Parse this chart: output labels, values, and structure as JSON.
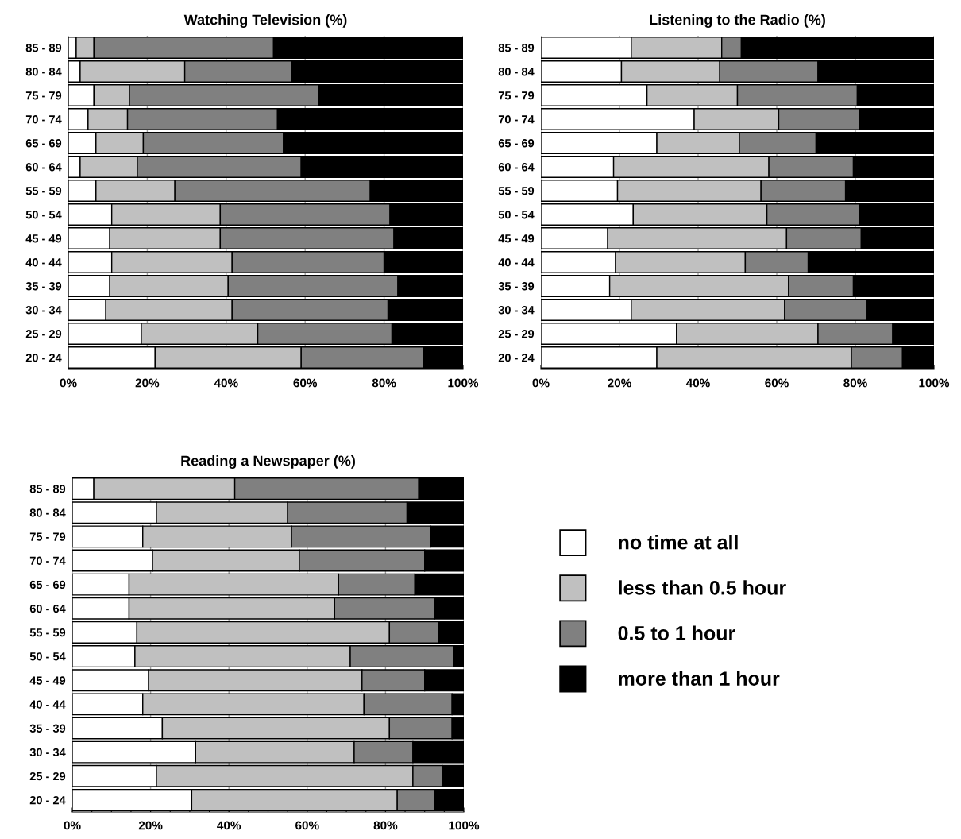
{
  "chart_data": [
    {
      "type": "bar",
      "title": "Watching Television (%)",
      "orientation": "horizontal",
      "stacked": true,
      "categories": [
        "85 - 89",
        "80 - 84",
        "75 - 79",
        "70 - 74",
        "65 - 69",
        "60 - 64",
        "55 - 59",
        "50 - 54",
        "45 - 49",
        "40 - 44",
        "35 - 39",
        "30 - 34",
        "25 - 29",
        "20 - 24"
      ],
      "series": [
        {
          "color": "#ffffff",
          "values": [
            2,
            3,
            6.5,
            5,
            7,
            3,
            7,
            11,
            10.5,
            11,
            10.5,
            9.5,
            18.5,
            22
          ]
        },
        {
          "color": "#c0c0c0",
          "values": [
            4.5,
            26.5,
            9,
            10,
            12,
            14.5,
            20,
            27.5,
            28,
            30.5,
            30,
            32,
            29.5,
            37
          ]
        },
        {
          "color": "#808080",
          "values": [
            45.5,
            27,
            48,
            38,
            35.5,
            41.5,
            49.5,
            43,
            44,
            38.5,
            43,
            39.5,
            34,
            31
          ]
        },
        {
          "color": "#000000",
          "values": [
            48,
            43.5,
            36.5,
            47,
            45.5,
            41,
            23.5,
            18.5,
            17.5,
            20,
            16.5,
            19,
            18,
            10
          ]
        }
      ],
      "xlim": [
        0,
        100
      ],
      "xticks": [
        {
          "value": 0,
          "label": "0%"
        },
        {
          "value": 5,
          "label": null
        },
        {
          "value": 10,
          "label": null
        },
        {
          "value": 15,
          "label": null
        },
        {
          "value": 20,
          "label": "20%"
        },
        {
          "value": 25,
          "label": null
        },
        {
          "value": 30,
          "label": null
        },
        {
          "value": 35,
          "label": null
        },
        {
          "value": 40,
          "label": "40%"
        },
        {
          "value": 45,
          "label": null
        },
        {
          "value": 50,
          "label": null
        },
        {
          "value": 55,
          "label": null
        },
        {
          "value": 60,
          "label": "60%"
        },
        {
          "value": 65,
          "label": null
        },
        {
          "value": 70,
          "label": null
        },
        {
          "value": 75,
          "label": null
        },
        {
          "value": 80,
          "label": "80%"
        },
        {
          "value": 85,
          "label": null
        },
        {
          "value": 90,
          "label": null
        },
        {
          "value": 95,
          "label": null
        },
        {
          "value": 100,
          "label": "100%"
        }
      ],
      "grid": "x"
    },
    {
      "type": "bar",
      "title": "Listening to the Radio (%)",
      "orientation": "horizontal",
      "stacked": true,
      "categories": [
        "85 - 89",
        "80 - 84",
        "75 - 79",
        "70 - 74",
        "65 - 69",
        "60 - 64",
        "55 - 59",
        "50 - 54",
        "45 - 49",
        "40 - 44",
        "35 - 39",
        "30 - 34",
        "25 - 29",
        "20 - 24"
      ],
      "series": [
        {
          "color": "#ffffff",
          "values": [
            23,
            20.5,
            27,
            39,
            29.5,
            18.5,
            19.5,
            23.5,
            17,
            19,
            17.5,
            23,
            34.5,
            29.5
          ]
        },
        {
          "color": "#c0c0c0",
          "values": [
            23,
            25,
            23,
            21.5,
            21,
            39.5,
            36.5,
            34,
            45.5,
            33,
            45.5,
            39,
            36,
            49.5
          ]
        },
        {
          "color": "#808080",
          "values": [
            5,
            25,
            30.5,
            20.5,
            19.5,
            21.5,
            21.5,
            23.5,
            19,
            16,
            16.5,
            21,
            19,
            13
          ]
        },
        {
          "color": "#000000",
          "values": [
            49,
            29.5,
            19.5,
            19,
            30,
            20.5,
            22.5,
            19,
            18.5,
            32,
            20.5,
            17,
            10.5,
            8
          ]
        }
      ],
      "xlim": [
        0,
        100
      ],
      "xticks": [
        {
          "value": 0,
          "label": "0%"
        },
        {
          "value": 5,
          "label": null
        },
        {
          "value": 10,
          "label": null
        },
        {
          "value": 15,
          "label": null
        },
        {
          "value": 20,
          "label": "20%"
        },
        {
          "value": 25,
          "label": null
        },
        {
          "value": 30,
          "label": null
        },
        {
          "value": 35,
          "label": null
        },
        {
          "value": 40,
          "label": "40%"
        },
        {
          "value": 45,
          "label": null
        },
        {
          "value": 50,
          "label": null
        },
        {
          "value": 55,
          "label": null
        },
        {
          "value": 60,
          "label": "60%"
        },
        {
          "value": 65,
          "label": null
        },
        {
          "value": 70,
          "label": null
        },
        {
          "value": 75,
          "label": null
        },
        {
          "value": 80,
          "label": "80%"
        },
        {
          "value": 85,
          "label": null
        },
        {
          "value": 90,
          "label": null
        },
        {
          "value": 95,
          "label": null
        },
        {
          "value": 100,
          "label": "100%"
        }
      ],
      "grid": "x"
    },
    {
      "type": "bar",
      "title": "Reading a Newspaper (%)",
      "orientation": "horizontal",
      "stacked": true,
      "categories": [
        "85 - 89",
        "80 - 84",
        "75 - 79",
        "70 - 74",
        "65 - 69",
        "60 - 64",
        "55 - 59",
        "50 - 54",
        "45 - 49",
        "40 - 44",
        "35 - 39",
        "30 - 34",
        "25 - 29",
        "20 - 24"
      ],
      "series": [
        {
          "name": "no time at all",
          "color": "#ffffff",
          "values": [
            5.5,
            21.5,
            18,
            20.5,
            14.5,
            14.5,
            16.5,
            16,
            19.5,
            18,
            23,
            31.5,
            21.5,
            30.5
          ]
        },
        {
          "name": "less than 0.5 hour",
          "color": "#c0c0c0",
          "values": [
            36,
            33.5,
            38,
            37.5,
            53.5,
            52.5,
            64.5,
            55,
            54.5,
            56.5,
            58,
            40.5,
            65.5,
            52.5
          ]
        },
        {
          "name": "0.5 to 1 hour",
          "color": "#808080",
          "values": [
            47,
            30.5,
            35.5,
            32,
            19.5,
            25.5,
            12.5,
            26.5,
            16,
            22.5,
            16,
            15,
            7.5,
            9.5
          ]
        },
        {
          "name": "more than 1 hour",
          "color": "#000000",
          "values": [
            11.5,
            14.5,
            8.5,
            10,
            12.5,
            7.5,
            6.5,
            2.5,
            10,
            3,
            3,
            13,
            5.5,
            7.5
          ]
        }
      ],
      "xlim": [
        0,
        100
      ],
      "xticks": [
        {
          "value": 0,
          "label": "0%"
        },
        {
          "value": 5,
          "label": null
        },
        {
          "value": 10,
          "label": null
        },
        {
          "value": 15,
          "label": null
        },
        {
          "value": 20,
          "label": "20%"
        },
        {
          "value": 25,
          "label": null
        },
        {
          "value": 30,
          "label": null
        },
        {
          "value": 35,
          "label": null
        },
        {
          "value": 40,
          "label": "40%"
        },
        {
          "value": 45,
          "label": null
        },
        {
          "value": 50,
          "label": null
        },
        {
          "value": 55,
          "label": null
        },
        {
          "value": 60,
          "label": "60%"
        },
        {
          "value": 65,
          "label": null
        },
        {
          "value": 70,
          "label": null
        },
        {
          "value": 75,
          "label": null
        },
        {
          "value": 80,
          "label": "80%"
        },
        {
          "value": 85,
          "label": null
        },
        {
          "value": 90,
          "label": null
        },
        {
          "value": 95,
          "label": null
        },
        {
          "value": 100,
          "label": "100%"
        }
      ],
      "grid": "x",
      "legend": "right"
    }
  ]
}
